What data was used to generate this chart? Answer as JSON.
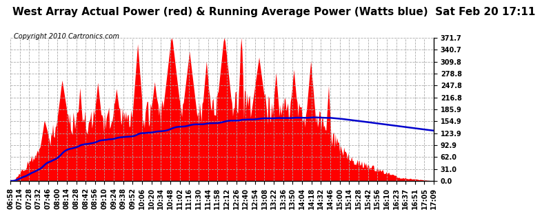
{
  "title": "West Array Actual Power (red) & Running Average Power (Watts blue)  Sat Feb 20 17:11",
  "copyright": "Copyright 2010 Cartronics.com",
  "ymin": 0.0,
  "ymax": 371.7,
  "yticks": [
    0.0,
    31.0,
    62.0,
    92.9,
    123.9,
    154.9,
    185.9,
    216.8,
    247.8,
    278.8,
    309.8,
    340.7,
    371.7
  ],
  "xtick_labels": [
    "06:58",
    "07:14",
    "07:28",
    "07:32",
    "07:46",
    "08:00",
    "08:14",
    "08:28",
    "08:42",
    "08:56",
    "09:10",
    "09:24",
    "09:38",
    "09:52",
    "10:06",
    "10:20",
    "10:34",
    "10:48",
    "11:02",
    "11:16",
    "11:30",
    "11:44",
    "11:58",
    "12:12",
    "12:26",
    "12:40",
    "12:54",
    "13:08",
    "13:22",
    "13:36",
    "13:50",
    "14:04",
    "14:18",
    "14:32",
    "14:46",
    "15:00",
    "15:14",
    "15:28",
    "15:42",
    "15:56",
    "16:10",
    "16:23",
    "16:37",
    "16:51",
    "17:05",
    "17:09"
  ],
  "bar_color": "#FF0000",
  "line_color": "#0000CC",
  "bg_color": "#FFFFFF",
  "title_fontsize": 11,
  "copyright_fontsize": 7,
  "tick_fontsize": 7
}
